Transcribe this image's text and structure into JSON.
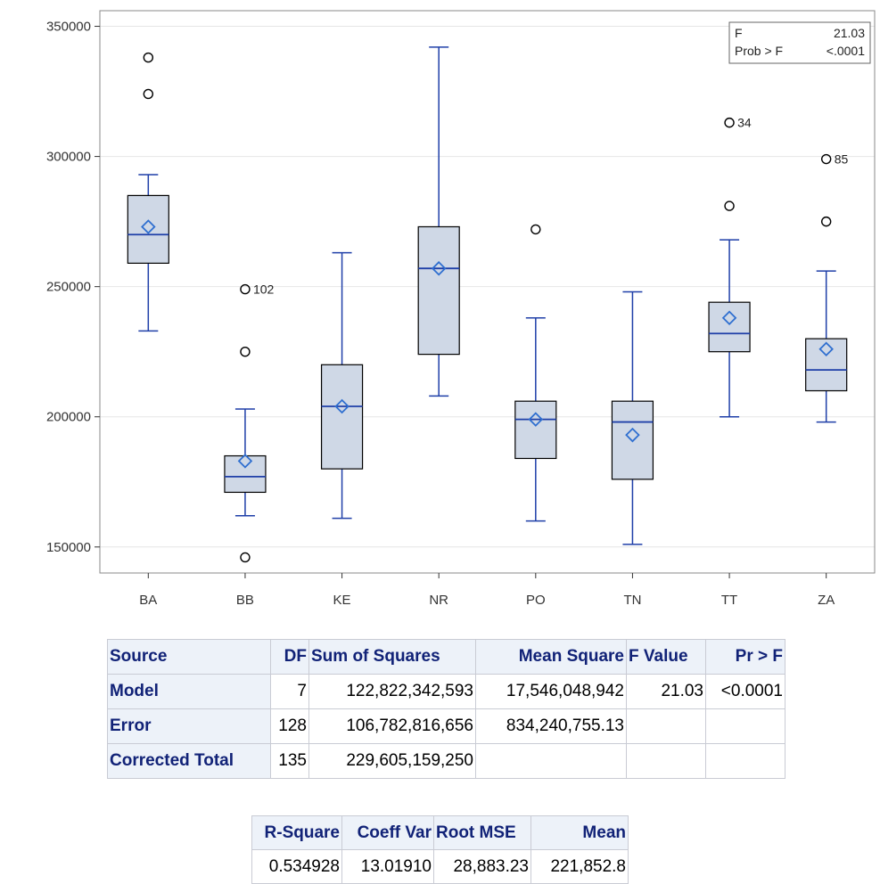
{
  "chart_data": {
    "type": "box",
    "categories": [
      "BA",
      "BB",
      "KE",
      "NR",
      "PO",
      "TN",
      "TT",
      "ZA"
    ],
    "ylim": [
      140000,
      356000
    ],
    "yticks": [
      150000,
      200000,
      250000,
      300000,
      350000
    ],
    "ytick_labels": [
      "150000",
      "200000",
      "250000",
      "300000",
      "350000"
    ],
    "grid": true,
    "boxes": [
      {
        "category": "BA",
        "whisker_low": 233000,
        "q1": 259000,
        "median": 270000,
        "q3": 285000,
        "whisker_high": 293000,
        "mean": 273000,
        "outliers": [
          324000,
          338000
        ],
        "outlier_labels": [
          "",
          ""
        ]
      },
      {
        "category": "BB",
        "whisker_low": 162000,
        "q1": 171000,
        "median": 177000,
        "q3": 185000,
        "whisker_high": 203000,
        "mean": 183000,
        "outliers": [
          146000,
          225000,
          249000
        ],
        "outlier_labels": [
          "",
          "",
          "102"
        ]
      },
      {
        "category": "KE",
        "whisker_low": 161000,
        "q1": 180000,
        "median": 204000,
        "q3": 220000,
        "whisker_high": 263000,
        "mean": 204000,
        "outliers": [],
        "outlier_labels": []
      },
      {
        "category": "NR",
        "whisker_low": 208000,
        "q1": 224000,
        "median": 257000,
        "q3": 273000,
        "whisker_high": 342000,
        "mean": 257000,
        "outliers": [],
        "outlier_labels": []
      },
      {
        "category": "PO",
        "whisker_low": 160000,
        "q1": 184000,
        "median": 199000,
        "q3": 206000,
        "whisker_high": 238000,
        "mean": 199000,
        "outliers": [
          272000
        ],
        "outlier_labels": [
          ""
        ]
      },
      {
        "category": "TN",
        "whisker_low": 151000,
        "q1": 176000,
        "median": 198000,
        "q3": 206000,
        "whisker_high": 248000,
        "mean": 193000,
        "outliers": [],
        "outlier_labels": []
      },
      {
        "category": "TT",
        "whisker_low": 200000,
        "q1": 225000,
        "median": 232000,
        "q3": 244000,
        "whisker_high": 268000,
        "mean": 238000,
        "outliers": [
          281000,
          313000
        ],
        "outlier_labels": [
          "",
          "34"
        ]
      },
      {
        "category": "ZA",
        "whisker_low": 198000,
        "q1": 210000,
        "median": 218000,
        "q3": 230000,
        "whisker_high": 256000,
        "mean": 226000,
        "outliers": [
          275000,
          299000
        ],
        "outlier_labels": [
          "",
          "85"
        ]
      }
    ],
    "inset": {
      "rows": [
        {
          "label": "F",
          "value": "21.03"
        },
        {
          "label": "Prob > F",
          "value": "<.0001"
        }
      ]
    },
    "colors": {
      "box_fill": "#cfd8e6",
      "box_border": "#000000",
      "whisker": "#1f3fa8",
      "mean_marker": "#2f6fd0",
      "median": "#1f3fa8",
      "grid": "#e6e6e6"
    }
  },
  "anova_table": {
    "headers": {
      "source": "Source",
      "df": "DF",
      "ss": "Sum of Squares",
      "ms": "Mean Square",
      "f": "F Value",
      "p": "Pr > F"
    },
    "rows": [
      {
        "source": "Model",
        "df": "7",
        "ss": "122,822,342,593",
        "ms": "17,546,048,942",
        "f": "21.03",
        "p": "<0.0001"
      },
      {
        "source": "Error",
        "df": "128",
        "ss": "106,782,816,656",
        "ms": "834,240,755.13",
        "f": "",
        "p": ""
      },
      {
        "source": "Corrected Total",
        "df": "135",
        "ss": "229,605,159,250",
        "ms": "",
        "f": "",
        "p": ""
      }
    ]
  },
  "fit_table": {
    "headers": {
      "rsq": "R-Square",
      "cv": "Coeff Var",
      "rmse": "Root MSE",
      "mean": "Mean"
    },
    "values": {
      "rsq": "0.534928",
      "cv": "13.01910",
      "rmse": "28,883.23",
      "mean": "221,852.8"
    }
  }
}
